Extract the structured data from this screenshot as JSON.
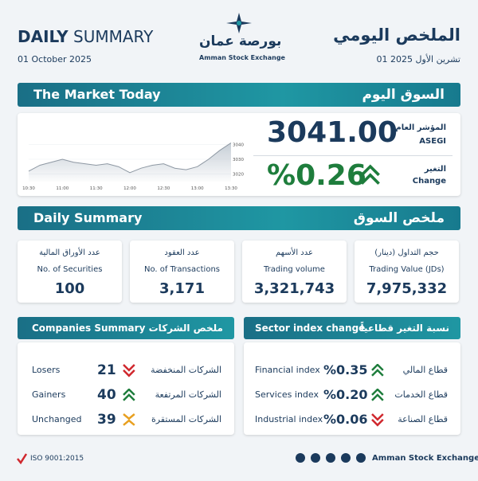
{
  "header": {
    "title_bold": "DAILY",
    "title_rest": "SUMMARY",
    "date": "01 October 2025",
    "title_ar": "الملخص اليومي",
    "date_ar": "01 تشرين الأول 2025",
    "logo_ar": "بورصة عمان",
    "logo_en": "Amman Stock Exchange"
  },
  "market_today": {
    "title": "The Market Today",
    "title_ar": "السوق اليوم",
    "index_label_ar": "المؤشر العام",
    "index_label": "ASEGI",
    "index_value": "3041.00",
    "change_label_ar": "التغير",
    "change_label": "Change",
    "change_value": "%0.26",
    "direction": "up"
  },
  "chart": {
    "type": "line",
    "x": [
      "10:30",
      "10:40",
      "10:50",
      "11:00",
      "11:10",
      "11:20",
      "11:30",
      "11:40",
      "11:50",
      "12:00",
      "12:10",
      "12:20",
      "12:30",
      "12:40",
      "12:50",
      "13:00",
      "13:10",
      "13:20",
      "13:30"
    ],
    "values": [
      3022,
      3026,
      3028,
      3030,
      3028,
      3027,
      3026,
      3027,
      3025,
      3021,
      3024,
      3026,
      3027,
      3024,
      3023,
      3025,
      3030,
      3036,
      3041
    ],
    "ylim": [
      3015,
      3045
    ],
    "yticks": [
      3020,
      3030,
      3040
    ],
    "xticks": [
      "10:30",
      "11:00",
      "11:30",
      "12:00",
      "12:30",
      "13:00",
      "13:30"
    ],
    "color": "#8e98a3"
  },
  "daily_summary": {
    "title": "Daily Summary",
    "title_ar": "ملخص السوق",
    "cards": [
      {
        "label_ar": "عدد الأوراق المالية",
        "label": "No. of Securities",
        "value": "100"
      },
      {
        "label_ar": "عدد العقود",
        "label": "No. of Transactions",
        "value": "3,171"
      },
      {
        "label_ar": "عدد الأسهم",
        "label": "Trading volume",
        "value": "3,321,743"
      },
      {
        "label_ar": "حجم التداول (دينار)",
        "label": "Trading Value (JDs)",
        "value": "7,975,332"
      }
    ]
  },
  "companies": {
    "title": "Companies Summary",
    "title_ar": "ملخص الشركات",
    "rows": [
      {
        "label": "Losers",
        "value": "21",
        "label_ar": "الشركات المنخفضة",
        "direction": "down"
      },
      {
        "label": "Gainers",
        "value": "40",
        "label_ar": "الشركات المرتفعة",
        "direction": "up"
      },
      {
        "label": "Unchanged",
        "value": "39",
        "label_ar": "الشركات المستقرة",
        "direction": "flat"
      }
    ]
  },
  "sectors": {
    "title": "Sector index change",
    "title_ar": "نسبة التغير قطاعياً",
    "rows": [
      {
        "label": "Financial index",
        "value": "%0.35",
        "label_ar": "قطاع المالي",
        "direction": "up"
      },
      {
        "label": "Services index",
        "value": "%0.20",
        "label_ar": "قطاع الخدمات",
        "direction": "up"
      },
      {
        "label": "Industrial index",
        "value": "%0.06",
        "label_ar": "قطاع الصناعة",
        "direction": "down"
      }
    ]
  },
  "footer": {
    "iso": "ISO 9001:2015",
    "name": "Amman Stock Exchange"
  }
}
